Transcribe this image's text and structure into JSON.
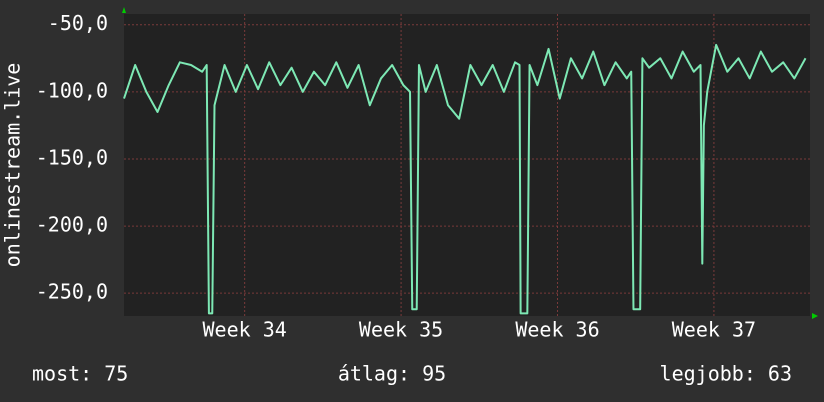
{
  "chart_data": {
    "type": "line",
    "ylabel": "onlinestream.live",
    "x": [
      0,
      0.5,
      1.0,
      1.5,
      2.0,
      2.5,
      3.0,
      3.5,
      3.7,
      3.8,
      3.95,
      4.05,
      4.5,
      5.0,
      5.5,
      6.0,
      6.5,
      7.0,
      7.5,
      8.0,
      8.5,
      9.0,
      9.5,
      10.0,
      10.5,
      11.0,
      11.5,
      12.0,
      12.5,
      12.8,
      12.9,
      13.1,
      13.2,
      13.5,
      14.0,
      14.5,
      15.0,
      15.5,
      16.0,
      16.5,
      17.0,
      17.5,
      17.7,
      17.75,
      18.05,
      18.15,
      18.5,
      19.0,
      19.5,
      20.0,
      20.5,
      21.0,
      21.5,
      22.0,
      22.5,
      22.7,
      22.8,
      23.1,
      23.2,
      23.5,
      24.0,
      24.5,
      25.0,
      25.5,
      25.8,
      25.88,
      25.95,
      26.1,
      26.5,
      27.0,
      27.5,
      28.0,
      28.5,
      29.0,
      29.5,
      30.0,
      30.5
    ],
    "series": [
      {
        "color": "#7de8b4",
        "values": [
          -105,
          -80,
          -100,
          -115,
          -95,
          -78,
          -80,
          -85,
          -80,
          -265,
          -265,
          -110,
          -80,
          -100,
          -80,
          -98,
          -78,
          -95,
          -82,
          -100,
          -85,
          -95,
          -78,
          -97,
          -80,
          -110,
          -90,
          -80,
          -95,
          -100,
          -262,
          -262,
          -80,
          -100,
          -80,
          -110,
          -120,
          -80,
          -95,
          -80,
          -100,
          -78,
          -80,
          -265,
          -265,
          -80,
          -95,
          -68,
          -105,
          -75,
          -90,
          -70,
          -95,
          -78,
          -90,
          -85,
          -262,
          -262,
          -75,
          -82,
          -75,
          -90,
          -70,
          -85,
          -80,
          -228,
          -125,
          -100,
          -65,
          -85,
          -75,
          -90,
          -70,
          -85,
          -78,
          -90,
          -75
        ]
      }
    ],
    "xlim": [
      0,
      30.7
    ],
    "xticks": [
      {
        "value": 5.4,
        "label": "Week 34"
      },
      {
        "value": 12.4,
        "label": "Week 35"
      },
      {
        "value": 19.4,
        "label": "Week 36"
      },
      {
        "value": 26.4,
        "label": "Week 37"
      }
    ],
    "ylim": [
      -267,
      -42
    ],
    "yticks": [
      {
        "value": -50,
        "label": "-50,0"
      },
      {
        "value": -100,
        "label": "-100,0"
      },
      {
        "value": -150,
        "label": "-150,0"
      },
      {
        "value": -200,
        "label": "-200,0"
      },
      {
        "value": -250,
        "label": "-250,0"
      }
    ],
    "grid": true
  },
  "footer": [
    "most: 75",
    "átlag: 95",
    "legjobb: 63"
  ]
}
